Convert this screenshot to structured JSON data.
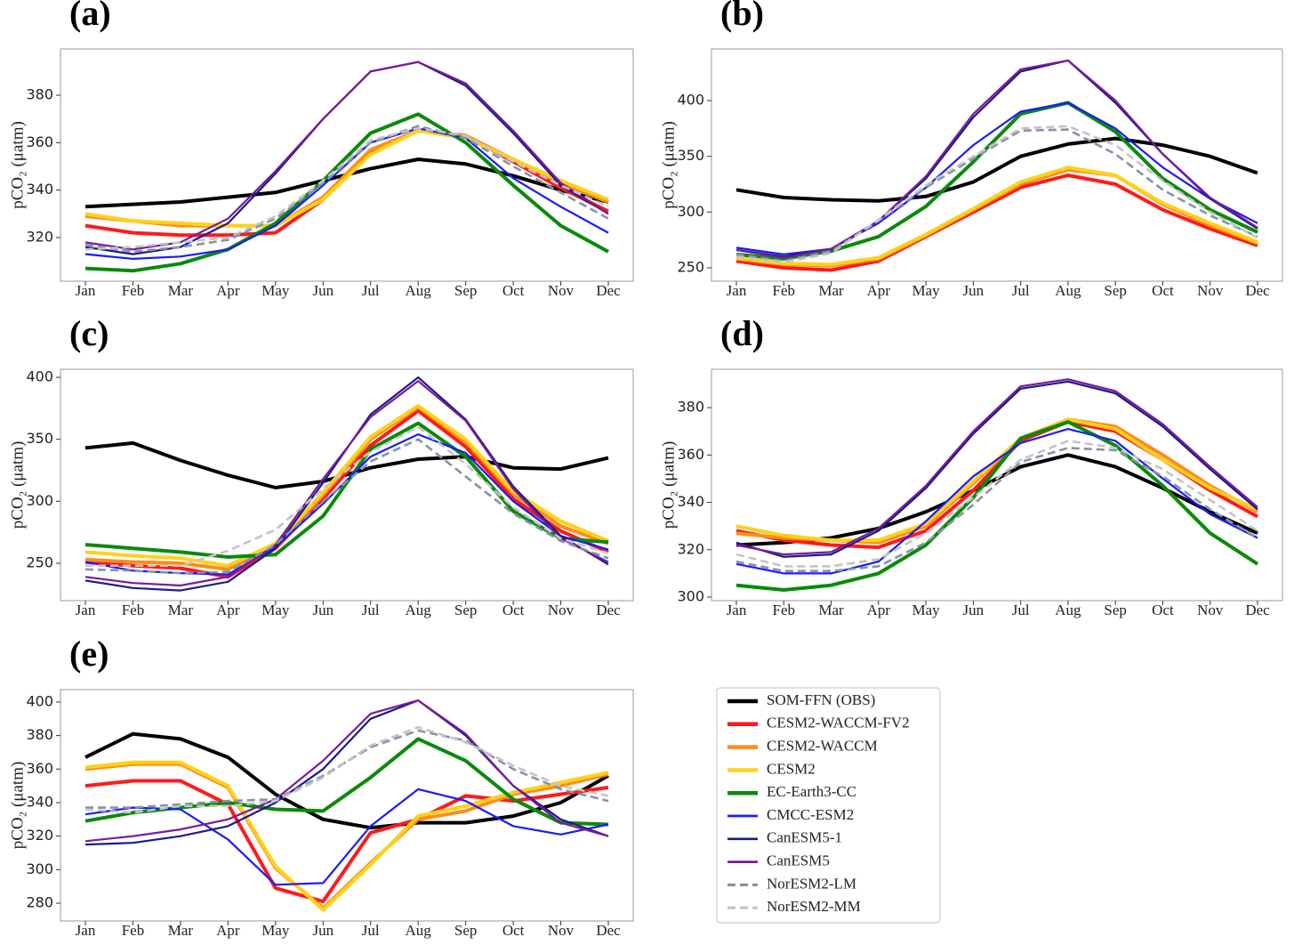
{
  "legend": [
    {
      "name": "SOM-FFN (OBS)",
      "color": "#000000",
      "dash": false
    },
    {
      "name": "CESM2-WACCM-FV2",
      "color": "#ff1a1a",
      "dash": false
    },
    {
      "name": "CESM2-WACCM",
      "color": "#ff8c1a",
      "dash": false
    },
    {
      "name": "CESM2",
      "color": "#ffd21a",
      "dash": false
    },
    {
      "name": "EC-Earth3-CC",
      "color": "#0a8a0a",
      "dash": false
    },
    {
      "name": "CMCC-ESM2",
      "color": "#1a1aff",
      "dash": false
    },
    {
      "name": "CanESM5-1",
      "color": "#1a1a8c",
      "dash": false
    },
    {
      "name": "CanESM5",
      "color": "#7a1a9a",
      "dash": false
    },
    {
      "name": "NorESM2-LM",
      "color": "#8494a8",
      "dash": true
    },
    {
      "name": "NorESM2-MM",
      "color": "#c4c4c4",
      "dash": true
    }
  ],
  "chart_data": [
    {
      "type": "line",
      "title": "(a)",
      "ylabel": "pCO₂ (μatm)",
      "categories": [
        "Jan",
        "Feb",
        "Mar",
        "Apr",
        "May",
        "Jun",
        "Jul",
        "Aug",
        "Sep",
        "Oct",
        "Nov",
        "Dec"
      ],
      "ylim": [
        301.6,
        399.5
      ],
      "yticks": [
        320,
        340,
        360,
        380
      ],
      "series": [
        {
          "values": [
            333,
            334,
            335,
            337,
            339,
            344,
            349,
            353,
            351,
            346,
            340,
            335
          ]
        },
        {
          "values": [
            325,
            322,
            321,
            321,
            322,
            336,
            356,
            365,
            363,
            352,
            341,
            331
          ]
        },
        {
          "values": [
            329,
            327,
            325,
            325,
            325,
            337,
            357,
            365,
            363,
            353,
            343,
            335
          ]
        },
        {
          "values": [
            330,
            327,
            326,
            325,
            325,
            336,
            355,
            365,
            362,
            353,
            344,
            336
          ]
        },
        {
          "values": [
            307,
            306,
            309,
            315,
            326,
            344,
            364,
            372,
            360,
            342,
            325,
            314
          ]
        },
        {
          "values": [
            313,
            311,
            312,
            315,
            325,
            342,
            360,
            366,
            362,
            345,
            333,
            322
          ]
        },
        {
          "values": [
            316,
            313,
            316,
            326,
            347,
            370,
            390,
            394,
            384,
            364,
            342,
            330
          ]
        },
        {
          "values": [
            318,
            315,
            318,
            328,
            348,
            370,
            390,
            394,
            385,
            365,
            343,
            330
          ]
        },
        {
          "values": [
            317,
            314,
            316,
            319,
            328,
            343,
            360,
            367,
            362,
            350,
            339,
            328
          ]
        },
        {
          "values": [
            315,
            316,
            318,
            320,
            329,
            344,
            361,
            366,
            363,
            352,
            342,
            333
          ]
        }
      ]
    },
    {
      "type": "line",
      "title": "(b)",
      "ylabel": "pCO₂ (μatm)",
      "categories": [
        "Jan",
        "Feb",
        "Mar",
        "Apr",
        "May",
        "Jun",
        "Jul",
        "Aug",
        "Sep",
        "Oct",
        "Nov",
        "Dec"
      ],
      "ylim": [
        238,
        446.3
      ],
      "yticks": [
        250,
        300,
        350,
        400
      ],
      "series": [
        {
          "values": [
            320,
            313,
            311,
            310,
            314,
            327,
            350,
            361,
            366,
            360,
            350,
            335
          ]
        },
        {
          "values": [
            256,
            250,
            248,
            256,
            278,
            300,
            322,
            333,
            325,
            302,
            285,
            270
          ]
        },
        {
          "values": [
            258,
            253,
            252,
            258,
            279,
            302,
            325,
            338,
            333,
            307,
            288,
            272
          ]
        },
        {
          "values": [
            259,
            254,
            253,
            259,
            280,
            303,
            327,
            340,
            333,
            308,
            290,
            273
          ]
        },
        {
          "values": [
            262,
            258,
            265,
            278,
            305,
            345,
            388,
            398,
            372,
            330,
            302,
            282
          ]
        },
        {
          "values": [
            268,
            262,
            267,
            290,
            322,
            360,
            390,
            398,
            375,
            340,
            312,
            290
          ]
        },
        {
          "values": [
            266,
            260,
            267,
            292,
            330,
            385,
            426,
            436,
            398,
            352,
            312,
            285
          ]
        },
        {
          "values": [
            266,
            259,
            267,
            292,
            332,
            388,
            428,
            436,
            400,
            352,
            313,
            286
          ]
        },
        {
          "values": [
            262,
            256,
            265,
            292,
            322,
            348,
            373,
            374,
            352,
            320,
            297,
            278
          ]
        },
        {
          "values": [
            260,
            255,
            263,
            293,
            324,
            350,
            375,
            377,
            360,
            328,
            300,
            277
          ]
        }
      ]
    },
    {
      "type": "line",
      "title": "(c)",
      "ylabel": "pCO₂ (μatm)",
      "categories": [
        "Jan",
        "Feb",
        "Mar",
        "Apr",
        "May",
        "Jun",
        "Jul",
        "Aug",
        "Sep",
        "Oct",
        "Nov",
        "Dec"
      ],
      "ylim": [
        219.8,
        406.5
      ],
      "yticks": [
        250,
        300,
        350,
        400
      ],
      "series": [
        {
          "values": [
            343,
            347,
            333,
            321,
            311,
            316,
            327,
            334,
            336,
            327,
            326,
            335
          ]
        },
        {
          "values": [
            251,
            248,
            246,
            239,
            262,
            302,
            345,
            373,
            344,
            302,
            276,
            259
          ]
        },
        {
          "values": [
            253,
            251,
            250,
            245,
            264,
            305,
            350,
            376,
            348,
            306,
            280,
            266
          ]
        },
        {
          "values": [
            259,
            256,
            254,
            248,
            266,
            307,
            352,
            377,
            350,
            308,
            284,
            268
          ]
        },
        {
          "values": [
            265,
            262,
            259,
            255,
            257,
            288,
            342,
            363,
            336,
            292,
            270,
            267
          ]
        },
        {
          "values": [
            251,
            244,
            242,
            241,
            263,
            298,
            336,
            354,
            339,
            300,
            272,
            261
          ]
        },
        {
          "values": [
            236,
            230,
            228,
            235,
            262,
            315,
            370,
            400,
            366,
            312,
            272,
            249
          ]
        },
        {
          "values": [
            239,
            234,
            232,
            239,
            265,
            318,
            368,
            397,
            365,
            310,
            270,
            251
          ]
        },
        {
          "values": [
            245,
            244,
            242,
            243,
            265,
            300,
            332,
            350,
            320,
            290,
            268,
            254
          ]
        },
        {
          "values": [
            248,
            248,
            248,
            260,
            277,
            310,
            340,
            360,
            330,
            295,
            270,
            258
          ]
        }
      ]
    },
    {
      "type": "line",
      "title": "(d)",
      "ylabel": "pCO₂ (μatm)",
      "categories": [
        "Jan",
        "Feb",
        "Mar",
        "Apr",
        "May",
        "Jun",
        "Jul",
        "Aug",
        "Sep",
        "Oct",
        "Nov",
        "Dec"
      ],
      "ylim": [
        298.5,
        396.2
      ],
      "yticks": [
        300,
        320,
        340,
        360,
        380
      ],
      "series": [
        {
          "values": [
            322,
            323,
            325,
            329,
            336,
            345,
            355,
            360,
            355,
            346,
            336,
            327
          ]
        },
        {
          "values": [
            328,
            324,
            322,
            321,
            328,
            345,
            366,
            374,
            370,
            358,
            345,
            334
          ]
        },
        {
          "values": [
            327,
            325,
            324,
            323,
            330,
            348,
            367,
            375,
            372,
            360,
            347,
            336
          ]
        },
        {
          "values": [
            330,
            326,
            324,
            324,
            331,
            349,
            367,
            375,
            371,
            358,
            346,
            337
          ]
        },
        {
          "values": [
            305,
            303,
            305,
            310,
            322,
            342,
            367,
            374,
            364,
            347,
            327,
            314
          ]
        },
        {
          "values": [
            314,
            310,
            310,
            315,
            332,
            351,
            365,
            371,
            366,
            350,
            335,
            325
          ]
        },
        {
          "values": [
            323,
            317,
            318,
            328,
            346,
            369,
            388,
            391,
            386,
            372,
            354,
            337
          ]
        },
        {
          "values": [
            322,
            318,
            319,
            329,
            347,
            370,
            389,
            392,
            387,
            373,
            355,
            338
          ]
        },
        {
          "values": [
            315,
            311,
            311,
            313,
            323,
            339,
            357,
            363,
            362,
            351,
            337,
            325
          ]
        },
        {
          "values": [
            318,
            313,
            313,
            316,
            327,
            342,
            358,
            366,
            363,
            354,
            341,
            328
          ]
        }
      ]
    },
    {
      "type": "line",
      "title": "(e)",
      "ylabel": "pCO₂ (μatm)",
      "categories": [
        "Jan",
        "Feb",
        "Mar",
        "Apr",
        "May",
        "Jun",
        "Jul",
        "Aug",
        "Sep",
        "Oct",
        "Nov",
        "Dec"
      ],
      "ylim": [
        269.4,
        407.4
      ],
      "yticks": [
        280,
        300,
        320,
        340,
        360,
        380,
        400
      ],
      "series": [
        {
          "values": [
            367,
            381,
            378,
            367,
            345,
            330,
            325,
            328,
            328,
            332,
            340,
            356
          ]
        },
        {
          "values": [
            350,
            353,
            353,
            339,
            289,
            281,
            322,
            330,
            344,
            341,
            345,
            349
          ]
        },
        {
          "values": [
            360,
            363,
            363,
            349,
            301,
            277,
            304,
            330,
            335,
            345,
            350,
            357
          ]
        },
        {
          "values": [
            361,
            364,
            364,
            350,
            302,
            276,
            303,
            332,
            338,
            346,
            352,
            358
          ]
        },
        {
          "values": [
            329,
            334,
            337,
            340,
            336,
            335,
            355,
            378,
            365,
            342,
            328,
            327
          ]
        },
        {
          "values": [
            333,
            337,
            336,
            318,
            291,
            292,
            326,
            348,
            341,
            326,
            321,
            327
          ]
        },
        {
          "values": [
            315,
            316,
            320,
            326,
            340,
            360,
            390,
            401,
            380,
            350,
            330,
            320
          ]
        },
        {
          "values": [
            317,
            320,
            324,
            330,
            342,
            365,
            393,
            401,
            381,
            350,
            328,
            320
          ]
        },
        {
          "values": [
            337,
            337,
            339,
            341,
            342,
            356,
            373,
            383,
            377,
            360,
            348,
            341
          ]
        },
        {
          "values": [
            336,
            334,
            338,
            338,
            341,
            355,
            374,
            385,
            376,
            362,
            350,
            344
          ]
        }
      ]
    }
  ]
}
